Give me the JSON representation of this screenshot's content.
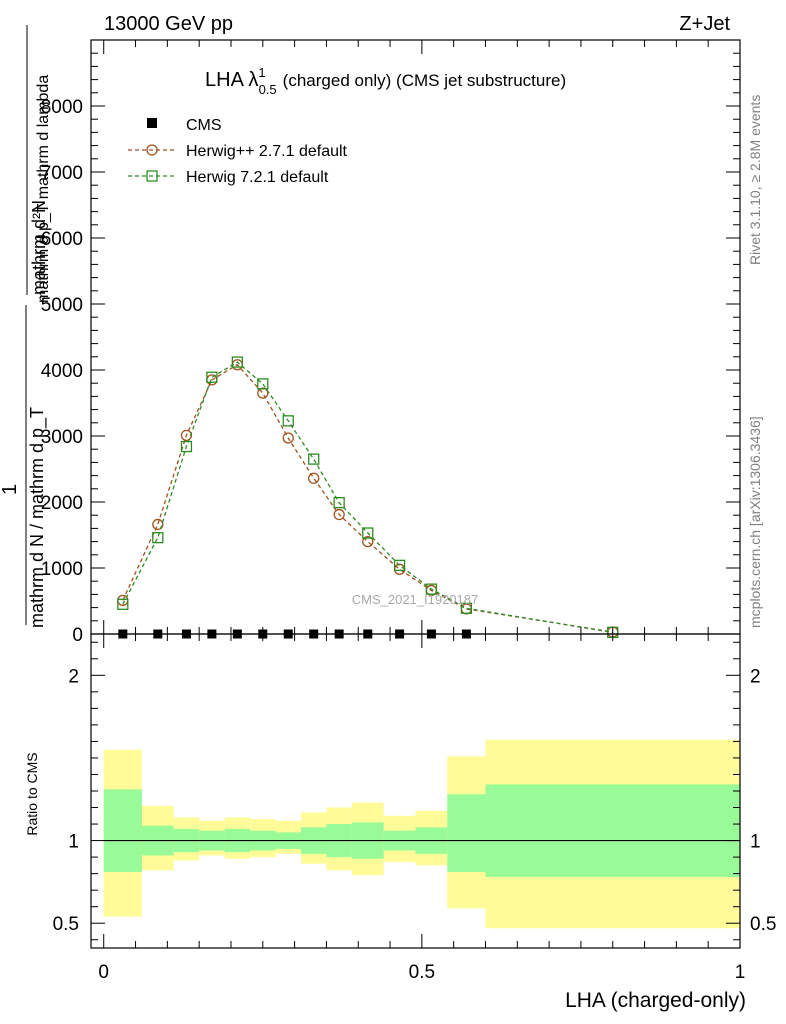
{
  "header": {
    "left": "13000 GeV pp",
    "right": "Z+Jet",
    "side_rivet": "Rivet 3.1.10, ≥ 2.8M events",
    "side_mcplots": "mcplots.cern.ch [arXiv:1306.3436]"
  },
  "chart_data": [
    {
      "type": "line",
      "title_main": "LHA λ",
      "title_sup": "1",
      "title_sub": "0.5",
      "title_rest": "(charged only) (CMS jet substructure)",
      "ylabel_top": "mathrm d²N",
      "ylabel_top2": "mathrm d p_T mathrm d lambda",
      "ylabel_one": "1",
      "ylabel_bottom": "mathrm d N / mathrm d p_T",
      "watermark": "CMS_2021_I1920187",
      "xlim": [
        -0.02,
        1.0
      ],
      "ylim": [
        0,
        9000
      ],
      "yticks": [
        0,
        1000,
        2000,
        3000,
        4000,
        5000,
        6000,
        7000,
        8000
      ],
      "ytick_labels": [
        "0",
        "1000",
        "2000",
        "3000",
        "4000",
        "5000",
        "6000",
        "7000",
        "8000"
      ],
      "legend": [
        {
          "label": "CMS",
          "marker": "square-filled",
          "color": "#000000"
        },
        {
          "label": "Herwig++ 2.7.1 default",
          "marker": "circle-open",
          "color": "#a0521e"
        },
        {
          "label": "Herwig 7.2.1 default",
          "marker": "square-open",
          "color": "#2e8b22"
        }
      ],
      "series": [
        {
          "name": "CMS",
          "x": [
            0.03,
            0.085,
            0.13,
            0.17,
            0.21,
            0.25,
            0.29,
            0.33,
            0.37,
            0.415,
            0.465,
            0.515,
            0.57
          ],
          "y": [
            0,
            0,
            0,
            0,
            0,
            0,
            0,
            0,
            0,
            0,
            0,
            0,
            0
          ]
        },
        {
          "name": "Herwig++ 2.7.1 default",
          "x": [
            0.03,
            0.085,
            0.13,
            0.17,
            0.21,
            0.25,
            0.29,
            0.33,
            0.37,
            0.415,
            0.465,
            0.515,
            0.57,
            0.8
          ],
          "y": [
            510,
            1660,
            3010,
            3850,
            4080,
            3650,
            2970,
            2360,
            1810,
            1400,
            980,
            660,
            380,
            30
          ]
        },
        {
          "name": "Herwig 7.2.1 default",
          "x": [
            0.03,
            0.085,
            0.13,
            0.17,
            0.21,
            0.25,
            0.29,
            0.33,
            0.37,
            0.415,
            0.465,
            0.515,
            0.57,
            0.8
          ],
          "y": [
            450,
            1460,
            2840,
            3890,
            4120,
            3790,
            3230,
            2650,
            1990,
            1530,
            1040,
            680,
            390,
            25
          ]
        }
      ]
    },
    {
      "type": "area",
      "ylabel": "Ratio to CMS",
      "xlabel": "LHA (charged-only)",
      "xlim": [
        -0.02,
        1.0
      ],
      "ylim": [
        0.35,
        2.25
      ],
      "yticks": [
        0.5,
        1,
        2
      ],
      "ytick_labels": [
        "0.5",
        "1",
        "2"
      ],
      "xticks": [
        0,
        0.5,
        1
      ],
      "xtick_labels": [
        "0",
        "0.5",
        "1"
      ],
      "bins": [
        {
          "lo": 0.0,
          "hi": 0.06,
          "inner": [
            0.81,
            1.31
          ],
          "outer": [
            0.54,
            1.55
          ]
        },
        {
          "lo": 0.06,
          "hi": 0.11,
          "inner": [
            0.91,
            1.09
          ],
          "outer": [
            0.82,
            1.21
          ]
        },
        {
          "lo": 0.11,
          "hi": 0.15,
          "inner": [
            0.93,
            1.07
          ],
          "outer": [
            0.88,
            1.14
          ]
        },
        {
          "lo": 0.15,
          "hi": 0.19,
          "inner": [
            0.94,
            1.06
          ],
          "outer": [
            0.91,
            1.12
          ]
        },
        {
          "lo": 0.19,
          "hi": 0.23,
          "inner": [
            0.93,
            1.07
          ],
          "outer": [
            0.89,
            1.14
          ]
        },
        {
          "lo": 0.23,
          "hi": 0.27,
          "inner": [
            0.94,
            1.06
          ],
          "outer": [
            0.9,
            1.13
          ]
        },
        {
          "lo": 0.27,
          "hi": 0.31,
          "inner": [
            0.95,
            1.05
          ],
          "outer": [
            0.92,
            1.12
          ]
        },
        {
          "lo": 0.31,
          "hi": 0.35,
          "inner": [
            0.92,
            1.08
          ],
          "outer": [
            0.86,
            1.17
          ]
        },
        {
          "lo": 0.35,
          "hi": 0.39,
          "inner": [
            0.9,
            1.1
          ],
          "outer": [
            0.82,
            1.2
          ]
        },
        {
          "lo": 0.39,
          "hi": 0.44,
          "inner": [
            0.89,
            1.11
          ],
          "outer": [
            0.79,
            1.23
          ]
        },
        {
          "lo": 0.44,
          "hi": 0.49,
          "inner": [
            0.94,
            1.06
          ],
          "outer": [
            0.87,
            1.15
          ]
        },
        {
          "lo": 0.49,
          "hi": 0.54,
          "inner": [
            0.92,
            1.08
          ],
          "outer": [
            0.85,
            1.18
          ]
        },
        {
          "lo": 0.54,
          "hi": 0.6,
          "inner": [
            0.81,
            1.28
          ],
          "outer": [
            0.59,
            1.51
          ]
        },
        {
          "lo": 0.6,
          "hi": 1.0,
          "inner": [
            0.78,
            1.34
          ],
          "outer": [
            0.47,
            1.61
          ]
        }
      ]
    }
  ]
}
